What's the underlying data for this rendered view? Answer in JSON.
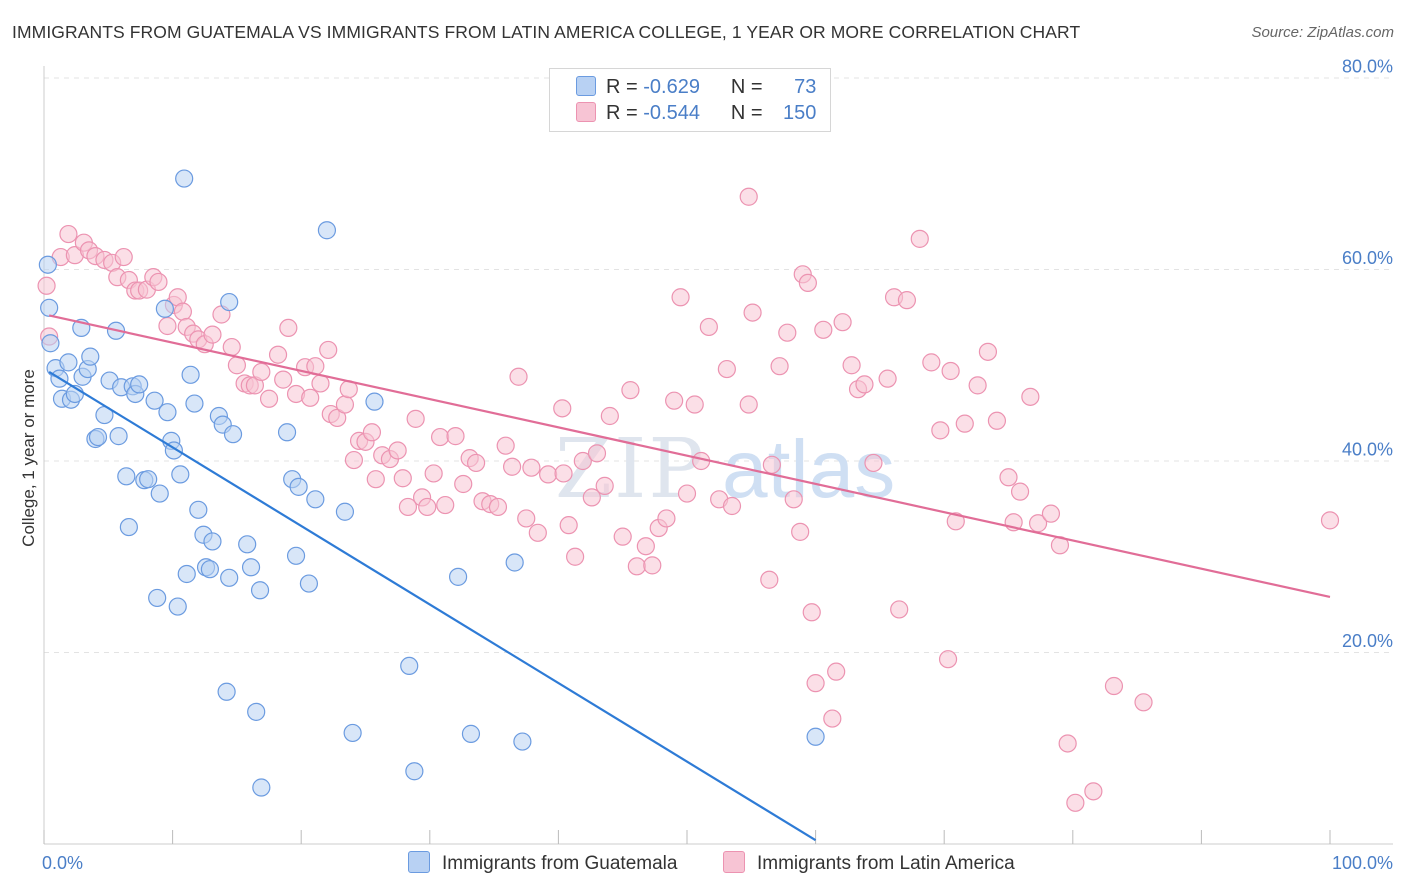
{
  "title": "IMMIGRANTS FROM GUATEMALA VS IMMIGRANTS FROM LATIN AMERICA COLLEGE, 1 YEAR OR MORE CORRELATION CHART",
  "source": "Source: ZipAtlas.com",
  "watermark": {
    "zip": "ZIP",
    "atlas": "atlas"
  },
  "colors": {
    "blue_fill": "#b8d1f3",
    "blue_stroke": "#6b9be0",
    "blue_line": "#2e7bd6",
    "pink_fill": "#f7c4d4",
    "pink_stroke": "#ec93b1",
    "pink_line": "#e16d97",
    "tick_text": "#4a7ec7",
    "grid": "#e3e3e3"
  },
  "legend": {
    "rows": [
      {
        "r_label": "R =",
        "r_value": "-0.629",
        "n_label": "N =",
        "n_value": "73"
      },
      {
        "r_label": "R =",
        "r_value": "-0.544",
        "n_label": "N =",
        "n_value": "150"
      }
    ]
  },
  "chart_data": {
    "type": "scatter",
    "title": "IMMIGRANTS FROM GUATEMALA VS IMMIGRANTS FROM LATIN AMERICA COLLEGE, 1 YEAR OR MORE CORRELATION CHART",
    "xlabel": "",
    "ylabel": "College, 1 year or more",
    "xlim": [
      0,
      100
    ],
    "ylim": [
      0,
      80
    ],
    "x_tick_labels": [
      "0.0%",
      "100.0%"
    ],
    "y_ticks": [
      20,
      40,
      60,
      80
    ],
    "y_tick_labels": [
      "20.0%",
      "40.0%",
      "60.0%",
      "80.0%"
    ],
    "grid": "horizontal dashed",
    "legend_position": "top-center",
    "series": [
      {
        "name": "Immigrants from Guatemala",
        "color": "#6b9be0",
        "trend": {
          "x": [
            0.4,
            60.0
          ],
          "y": [
            49.3,
            0.4
          ]
        },
        "points": [
          [
            0.4,
            56.0
          ],
          [
            0.3,
            60.5
          ],
          [
            0.5,
            52.3
          ],
          [
            0.9,
            49.7
          ],
          [
            1.2,
            48.6
          ],
          [
            1.4,
            46.5
          ],
          [
            1.9,
            50.3
          ],
          [
            2.1,
            46.4
          ],
          [
            2.4,
            47.0
          ],
          [
            2.9,
            53.9
          ],
          [
            3.0,
            48.8
          ],
          [
            3.4,
            49.6
          ],
          [
            3.6,
            50.9
          ],
          [
            4.0,
            42.3
          ],
          [
            4.2,
            42.5
          ],
          [
            4.7,
            44.8
          ],
          [
            5.1,
            48.4
          ],
          [
            5.6,
            53.6
          ],
          [
            5.8,
            42.6
          ],
          [
            6.0,
            47.7
          ],
          [
            6.4,
            38.4
          ],
          [
            6.6,
            33.1
          ],
          [
            6.9,
            47.8
          ],
          [
            7.1,
            47.0
          ],
          [
            7.4,
            48.0
          ],
          [
            7.8,
            38.0
          ],
          [
            8.1,
            38.1
          ],
          [
            8.6,
            46.3
          ],
          [
            8.8,
            25.7
          ],
          [
            9.0,
            36.6
          ],
          [
            9.4,
            55.9
          ],
          [
            9.6,
            45.1
          ],
          [
            9.9,
            42.1
          ],
          [
            10.1,
            41.1
          ],
          [
            10.4,
            24.8
          ],
          [
            10.6,
            38.6
          ],
          [
            10.9,
            69.5
          ],
          [
            11.1,
            28.2
          ],
          [
            11.4,
            49.0
          ],
          [
            11.7,
            46.0
          ],
          [
            12.0,
            34.9
          ],
          [
            12.4,
            32.3
          ],
          [
            12.6,
            28.9
          ],
          [
            12.9,
            28.7
          ],
          [
            13.1,
            31.6
          ],
          [
            13.6,
            44.7
          ],
          [
            13.9,
            43.8
          ],
          [
            14.2,
            15.9
          ],
          [
            14.4,
            56.6
          ],
          [
            14.7,
            42.8
          ],
          [
            14.4,
            27.8
          ],
          [
            15.8,
            31.3
          ],
          [
            16.1,
            28.9
          ],
          [
            16.5,
            13.8
          ],
          [
            16.8,
            26.5
          ],
          [
            16.9,
            5.9
          ],
          [
            18.9,
            43.0
          ],
          [
            19.3,
            38.1
          ],
          [
            19.6,
            30.1
          ],
          [
            19.8,
            37.3
          ],
          [
            20.6,
            27.2
          ],
          [
            21.1,
            36.0
          ],
          [
            22.0,
            64.1
          ],
          [
            23.4,
            34.7
          ],
          [
            24.0,
            11.6
          ],
          [
            25.7,
            46.2
          ],
          [
            28.4,
            18.6
          ],
          [
            28.8,
            7.6
          ],
          [
            32.2,
            27.9
          ],
          [
            33.2,
            11.5
          ],
          [
            36.6,
            29.4
          ],
          [
            37.2,
            10.7
          ],
          [
            60.0,
            11.2
          ]
        ]
      },
      {
        "name": "Immigrants from Latin America",
        "color": "#ec93b1",
        "trend": {
          "x": [
            0.4,
            100.0
          ],
          "y": [
            55.2,
            25.8
          ]
        },
        "points": [
          [
            0.2,
            58.3
          ],
          [
            0.4,
            53.0
          ],
          [
            1.3,
            61.3
          ],
          [
            1.9,
            63.7
          ],
          [
            2.4,
            61.5
          ],
          [
            3.1,
            62.8
          ],
          [
            3.5,
            62.0
          ],
          [
            4.0,
            61.4
          ],
          [
            4.7,
            61.0
          ],
          [
            5.3,
            60.7
          ],
          [
            5.7,
            59.2
          ],
          [
            6.2,
            61.3
          ],
          [
            6.6,
            58.9
          ],
          [
            7.1,
            57.8
          ],
          [
            7.4,
            57.8
          ],
          [
            8.0,
            57.9
          ],
          [
            8.5,
            59.2
          ],
          [
            8.9,
            58.7
          ],
          [
            9.6,
            54.1
          ],
          [
            10.1,
            56.3
          ],
          [
            10.4,
            57.1
          ],
          [
            10.8,
            55.6
          ],
          [
            11.1,
            54.0
          ],
          [
            11.6,
            53.3
          ],
          [
            12.0,
            52.7
          ],
          [
            12.5,
            52.2
          ],
          [
            13.1,
            53.2
          ],
          [
            13.8,
            55.3
          ],
          [
            14.6,
            51.9
          ],
          [
            15.0,
            50.0
          ],
          [
            15.6,
            48.1
          ],
          [
            16.0,
            47.9
          ],
          [
            16.4,
            47.9
          ],
          [
            16.9,
            49.3
          ],
          [
            17.5,
            46.5
          ],
          [
            18.2,
            51.1
          ],
          [
            18.6,
            48.5
          ],
          [
            19.0,
            53.9
          ],
          [
            19.6,
            47.0
          ],
          [
            20.3,
            49.8
          ],
          [
            20.7,
            46.6
          ],
          [
            21.1,
            49.9
          ],
          [
            21.5,
            48.1
          ],
          [
            22.1,
            51.6
          ],
          [
            22.3,
            44.9
          ],
          [
            22.8,
            44.5
          ],
          [
            23.4,
            45.9
          ],
          [
            23.7,
            47.5
          ],
          [
            24.1,
            40.1
          ],
          [
            24.5,
            42.1
          ],
          [
            25.0,
            42.0
          ],
          [
            25.5,
            43.0
          ],
          [
            25.8,
            38.1
          ],
          [
            26.3,
            40.6
          ],
          [
            26.9,
            40.2
          ],
          [
            27.5,
            41.1
          ],
          [
            27.9,
            38.2
          ],
          [
            28.3,
            35.2
          ],
          [
            28.9,
            44.4
          ],
          [
            29.4,
            36.2
          ],
          [
            29.8,
            35.2
          ],
          [
            30.3,
            38.7
          ],
          [
            30.8,
            42.5
          ],
          [
            31.2,
            35.4
          ],
          [
            32.0,
            42.6
          ],
          [
            32.6,
            37.6
          ],
          [
            33.1,
            40.3
          ],
          [
            33.6,
            39.8
          ],
          [
            34.1,
            35.8
          ],
          [
            34.7,
            35.5
          ],
          [
            35.3,
            35.2
          ],
          [
            35.9,
            41.6
          ],
          [
            36.4,
            39.4
          ],
          [
            36.9,
            48.8
          ],
          [
            37.5,
            34.0
          ],
          [
            37.9,
            39.3
          ],
          [
            38.4,
            32.5
          ],
          [
            39.2,
            38.6
          ],
          [
            40.3,
            45.5
          ],
          [
            40.8,
            33.3
          ],
          [
            40.4,
            38.7
          ],
          [
            41.3,
            30.0
          ],
          [
            41.9,
            40.0
          ],
          [
            42.6,
            36.2
          ],
          [
            43.0,
            40.8
          ],
          [
            43.6,
            37.4
          ],
          [
            44.0,
            44.7
          ],
          [
            45.0,
            32.1
          ],
          [
            45.6,
            47.4
          ],
          [
            46.1,
            29.0
          ],
          [
            46.8,
            31.1
          ],
          [
            47.3,
            29.1
          ],
          [
            47.8,
            33.0
          ],
          [
            48.4,
            34.0
          ],
          [
            49.0,
            46.3
          ],
          [
            49.5,
            57.1
          ],
          [
            50.0,
            36.6
          ],
          [
            50.6,
            45.9
          ],
          [
            51.1,
            40.0
          ],
          [
            51.7,
            54.0
          ],
          [
            52.5,
            36.0
          ],
          [
            53.1,
            49.6
          ],
          [
            53.5,
            35.3
          ],
          [
            54.8,
            45.9
          ],
          [
            55.1,
            55.5
          ],
          [
            56.6,
            39.6
          ],
          [
            56.4,
            27.6
          ],
          [
            57.2,
            49.9
          ],
          [
            57.8,
            53.4
          ],
          [
            58.3,
            36.0
          ],
          [
            58.8,
            32.6
          ],
          [
            59.0,
            59.5
          ],
          [
            59.7,
            24.2
          ],
          [
            60.0,
            16.8
          ],
          [
            60.6,
            53.7
          ],
          [
            61.3,
            13.1
          ],
          [
            61.6,
            18.0
          ],
          [
            62.1,
            54.5
          ],
          [
            62.8,
            50.0
          ],
          [
            63.3,
            47.5
          ],
          [
            63.8,
            48.0
          ],
          [
            64.5,
            39.8
          ],
          [
            65.6,
            48.6
          ],
          [
            66.1,
            57.1
          ],
          [
            66.5,
            24.5
          ],
          [
            67.1,
            56.8
          ],
          [
            68.1,
            63.2
          ],
          [
            69.0,
            50.3
          ],
          [
            69.7,
            43.2
          ],
          [
            70.3,
            19.3
          ],
          [
            70.5,
            49.4
          ],
          [
            70.9,
            33.7
          ],
          [
            71.6,
            43.9
          ],
          [
            72.6,
            47.9
          ],
          [
            73.4,
            51.4
          ],
          [
            74.1,
            44.2
          ],
          [
            75.0,
            38.3
          ],
          [
            75.4,
            33.6
          ],
          [
            75.9,
            36.8
          ],
          [
            76.7,
            46.7
          ],
          [
            77.3,
            33.5
          ],
          [
            78.3,
            34.5
          ],
          [
            79.0,
            31.2
          ],
          [
            79.6,
            10.5
          ],
          [
            80.2,
            4.3
          ],
          [
            81.6,
            5.5
          ],
          [
            83.2,
            16.5
          ],
          [
            85.5,
            14.8
          ],
          [
            100.0,
            33.8
          ],
          [
            54.8,
            67.6
          ],
          [
            59.4,
            58.6
          ]
        ]
      }
    ]
  }
}
